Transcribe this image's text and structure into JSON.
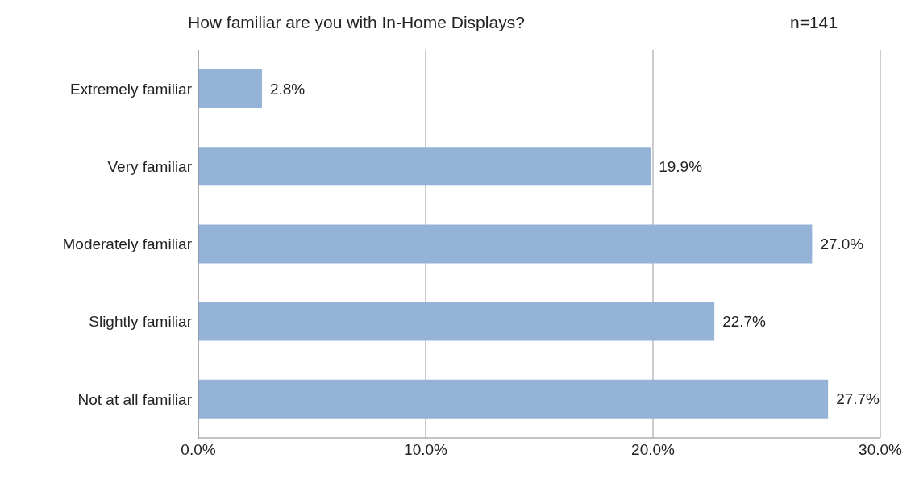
{
  "chart_data": {
    "type": "bar",
    "orientation": "horizontal",
    "title": "How familiar are you with In-Home Displays?",
    "annotations": [
      "n=141"
    ],
    "categories": [
      "Extremely familiar",
      "Very familiar",
      "Moderately familiar",
      "Slightly familiar",
      "Not at all familiar"
    ],
    "values": [
      2.8,
      19.9,
      27.0,
      22.7,
      27.7
    ],
    "value_labels": [
      "2.8%",
      "19.9%",
      "27.0%",
      "22.7%",
      "27.7%"
    ],
    "color": "#95b3d7",
    "xlim": [
      0,
      30
    ],
    "xticks": [
      {
        "value": 0,
        "label": "0.0%"
      },
      {
        "value": 10,
        "label": "10.0%"
      },
      {
        "value": 20,
        "label": "20.0%"
      },
      {
        "value": 30,
        "label": "30.0%"
      }
    ],
    "grid": "x",
    "legend": false
  }
}
